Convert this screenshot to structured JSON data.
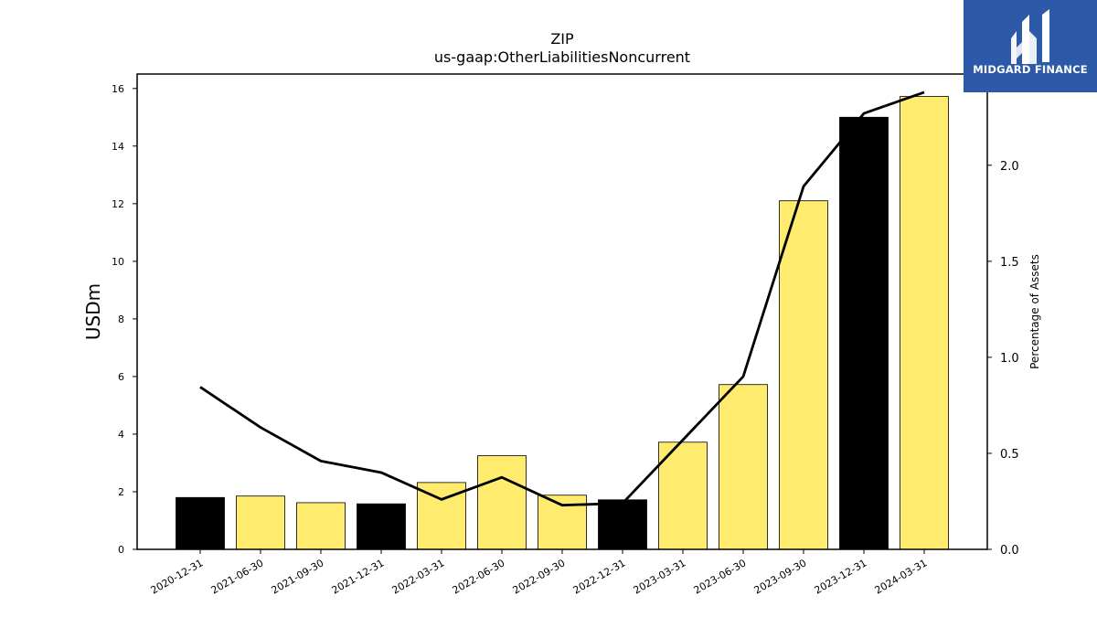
{
  "chart_data": {
    "type": "bar",
    "title": "ZIP",
    "subtitle": "us-gaap:OtherLiabilitiesNoncurrent",
    "ylabel": "USDm",
    "y2label": "Percentage of Assets",
    "categories": [
      "2020-12-31",
      "2021-06-30",
      "2021-09-30",
      "2021-12-31",
      "2022-03-31",
      "2022-06-30",
      "2022-09-30",
      "2022-12-31",
      "2023-03-31",
      "2023-06-30",
      "2023-09-30",
      "2023-12-31",
      "2024-03-31"
    ],
    "series": [
      {
        "values": [
          1.8,
          1.85,
          1.62,
          1.58,
          2.32,
          3.25,
          1.88,
          1.72,
          3.72,
          5.72,
          12.1,
          15.0,
          15.72
        ],
        "bar_colors": [
          "#000000",
          "#ffec6e",
          "#ffec6e",
          "#000000",
          "#ffec6e",
          "#ffec6e",
          "#ffec6e",
          "#000000",
          "#ffec6e",
          "#ffec6e",
          "#ffec6e",
          "#000000",
          "#ffec6e"
        ]
      },
      {
        "axis": "right",
        "type": "line",
        "color": "#000000",
        "values": [
          0.845,
          0.635,
          0.46,
          0.4,
          0.26,
          0.375,
          0.23,
          0.24,
          0.57,
          0.9,
          1.89,
          2.27,
          2.38
        ]
      }
    ],
    "ylim": [
      0,
      16.5
    ],
    "y2lim": [
      0,
      2.475
    ],
    "yticks": [
      0,
      2,
      4,
      6,
      8,
      10,
      12,
      14,
      16
    ],
    "y2ticks": [
      "0.0",
      "0.5",
      "1.0",
      "1.5",
      "2.0"
    ],
    "grid": false,
    "legend": "none"
  },
  "logo": {
    "text": "MIDGARD FINANCE",
    "background": "#2c5aa8"
  }
}
